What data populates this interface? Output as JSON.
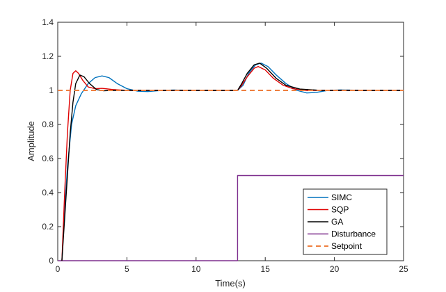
{
  "chart_data": {
    "type": "line",
    "title": "",
    "xlabel": "Time(s)",
    "ylabel": "Amplitude",
    "xlim": [
      0,
      25
    ],
    "ylim": [
      0,
      1.4
    ],
    "xticks": [
      0,
      5,
      10,
      15,
      20,
      25
    ],
    "yticks": [
      0,
      0.2,
      0.4,
      0.6,
      0.8,
      1,
      1.2,
      1.4
    ],
    "xtick_labels": [
      "0",
      "5",
      "10",
      "15",
      "20",
      "25"
    ],
    "ytick_labels": [
      "0",
      "0.2",
      "0.4",
      "0.6",
      "0.8",
      "1",
      "1.2",
      "1.4"
    ],
    "grid": false,
    "legend_position": "bottom-right",
    "series": [
      {
        "name": "SIMC",
        "color": "#0072BD",
        "dash": "solid",
        "points": [
          [
            0.3,
            0
          ],
          [
            0.5,
            0.3
          ],
          [
            0.7,
            0.55
          ],
          [
            1.0,
            0.8
          ],
          [
            1.3,
            0.91
          ],
          [
            1.7,
            0.98
          ],
          [
            2.2,
            1.04
          ],
          [
            2.7,
            1.075
          ],
          [
            3.2,
            1.085
          ],
          [
            3.7,
            1.075
          ],
          [
            4.3,
            1.04
          ],
          [
            5.0,
            1.01
          ],
          [
            5.8,
            0.995
          ],
          [
            6.5,
            0.993
          ],
          [
            7.5,
            1.0
          ],
          [
            8.5,
            1.002
          ],
          [
            10,
            1.0
          ],
          [
            13,
            1.0
          ],
          [
            13.4,
            1.03
          ],
          [
            13.8,
            1.1
          ],
          [
            14.3,
            1.15
          ],
          [
            14.7,
            1.16
          ],
          [
            15.2,
            1.14
          ],
          [
            15.8,
            1.09
          ],
          [
            16.5,
            1.04
          ],
          [
            17.3,
            1.0
          ],
          [
            18.0,
            0.985
          ],
          [
            18.7,
            0.988
          ],
          [
            19.5,
            1.0
          ],
          [
            20.5,
            1.003
          ],
          [
            22,
            1.0
          ],
          [
            25,
            1.0
          ]
        ]
      },
      {
        "name": "SQP",
        "color": "#E00000",
        "dash": "solid",
        "points": [
          [
            0.3,
            0
          ],
          [
            0.5,
            0.4
          ],
          [
            0.7,
            0.75
          ],
          [
            0.9,
            1.0
          ],
          [
            1.1,
            1.1
          ],
          [
            1.3,
            1.115
          ],
          [
            1.5,
            1.1
          ],
          [
            1.8,
            1.06
          ],
          [
            2.2,
            1.02
          ],
          [
            2.7,
            1.01
          ],
          [
            3.2,
            1.012
          ],
          [
            4.0,
            1.005
          ],
          [
            5.0,
            1.0
          ],
          [
            8,
            1.0
          ],
          [
            13,
            1.0
          ],
          [
            13.3,
            1.03
          ],
          [
            13.7,
            1.08
          ],
          [
            14.2,
            1.13
          ],
          [
            14.5,
            1.14
          ],
          [
            15.0,
            1.12
          ],
          [
            15.6,
            1.07
          ],
          [
            16.3,
            1.03
          ],
          [
            17.0,
            1.01
          ],
          [
            18.0,
            1.0
          ],
          [
            25,
            1.0
          ]
        ]
      },
      {
        "name": "GA",
        "color": "#000000",
        "dash": "solid",
        "points": [
          [
            0.3,
            0
          ],
          [
            0.5,
            0.25
          ],
          [
            0.7,
            0.5
          ],
          [
            0.9,
            0.75
          ],
          [
            1.1,
            0.93
          ],
          [
            1.3,
            1.04
          ],
          [
            1.6,
            1.09
          ],
          [
            1.9,
            1.08
          ],
          [
            2.3,
            1.04
          ],
          [
            2.8,
            1.005
          ],
          [
            3.3,
            0.998
          ],
          [
            4.0,
            1.0
          ],
          [
            5.0,
            1.0
          ],
          [
            8,
            1.0
          ],
          [
            13,
            1.0
          ],
          [
            13.3,
            1.04
          ],
          [
            13.7,
            1.1
          ],
          [
            14.2,
            1.15
          ],
          [
            14.6,
            1.16
          ],
          [
            15.1,
            1.13
          ],
          [
            15.8,
            1.07
          ],
          [
            16.5,
            1.03
          ],
          [
            17.5,
            1.008
          ],
          [
            19,
            1.0
          ],
          [
            25,
            1.0
          ]
        ]
      },
      {
        "name": "Disturbance",
        "color": "#7E2F8E",
        "dash": "solid",
        "points": [
          [
            0,
            0
          ],
          [
            13,
            0
          ],
          [
            13,
            0.5
          ],
          [
            25,
            0.5
          ]
        ]
      },
      {
        "name": "Setpoint",
        "color": "#EE7F3F",
        "dash": "dashed",
        "points": [
          [
            0,
            1
          ],
          [
            25,
            1
          ]
        ]
      }
    ]
  }
}
